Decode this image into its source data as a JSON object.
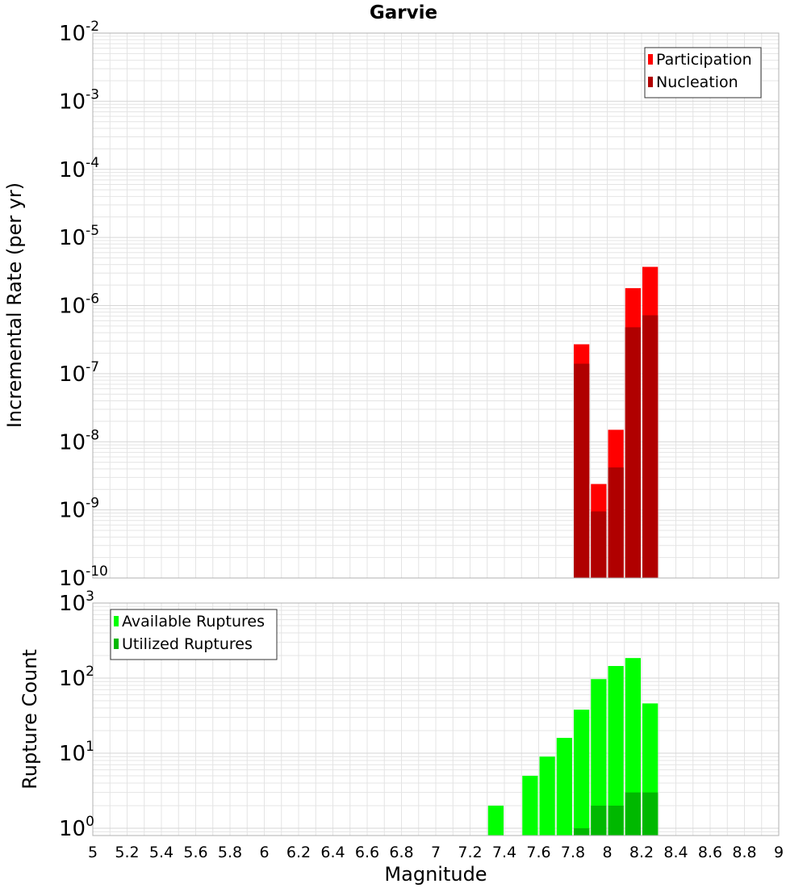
{
  "title": "Garvie",
  "colors": {
    "participation": "#ff0000",
    "nucleation": "#b00000",
    "available": "#00ff00",
    "utilized": "#00b800",
    "grid": "#e4e4e4",
    "frame": "#b0b0b0"
  },
  "chart_data": [
    {
      "type": "bar",
      "name": "rate-chart",
      "title": "Garvie",
      "xlabel": "Magnitude",
      "ylabel": "Incremental Rate (per yr)",
      "xlim": [
        5,
        9
      ],
      "ylim": [
        1e-10,
        0.01
      ],
      "yscale": "log",
      "ytick_exponents": [
        "-10",
        "-9",
        "-8",
        "-7",
        "-6",
        "-5",
        "-4",
        "-3",
        "-2"
      ],
      "ytick_base": "10",
      "bar_width": 0.1,
      "legend": {
        "placement": "top-right",
        "entries": [
          "Participation",
          "Nucleation"
        ]
      },
      "series": [
        {
          "name": "Participation",
          "color_key": "participation",
          "x": [
            7.85,
            7.95,
            8.05,
            8.15,
            8.25
          ],
          "values": [
            2.7e-07,
            2.4e-09,
            1.5e-08,
            1.8e-06,
            3.7e-06
          ]
        },
        {
          "name": "Nucleation",
          "color_key": "nucleation",
          "x": [
            7.85,
            7.95,
            8.05,
            8.15,
            8.25
          ],
          "values": [
            1.4e-07,
            9.5e-10,
            4.2e-09,
            4.8e-07,
            7.2e-07
          ]
        }
      ]
    },
    {
      "type": "bar",
      "name": "count-chart",
      "xlabel": "Magnitude",
      "ylabel": "Rupture Count",
      "xlim": [
        5,
        9
      ],
      "ylim": [
        0.8,
        1000
      ],
      "yscale": "log",
      "ytick_exponents": [
        "0",
        "1",
        "2",
        "3"
      ],
      "ytick_base": "10",
      "bar_width": 0.1,
      "xticks": [
        "5",
        "5.2",
        "5.4",
        "5.6",
        "5.8",
        "6",
        "6.2",
        "6.4",
        "6.6",
        "6.8",
        "7",
        "7.2",
        "7.4",
        "7.6",
        "7.8",
        "8",
        "8.2",
        "8.4",
        "8.6",
        "8.8",
        "9"
      ],
      "legend": {
        "placement": "top-left",
        "entries": [
          "Available Ruptures",
          "Utilized Ruptures"
        ]
      },
      "series": [
        {
          "name": "Available Ruptures",
          "color_key": "available",
          "x": [
            7.35,
            7.55,
            7.65,
            7.75,
            7.85,
            7.95,
            8.05,
            8.15,
            8.25
          ],
          "values": [
            2,
            5,
            9,
            16,
            38,
            97,
            145,
            185,
            46
          ]
        },
        {
          "name": "Utilized Ruptures",
          "color_key": "utilized",
          "x": [
            7.85,
            7.95,
            8.05,
            8.15,
            8.25
          ],
          "values": [
            1,
            2,
            2,
            3,
            3
          ]
        }
      ]
    }
  ]
}
